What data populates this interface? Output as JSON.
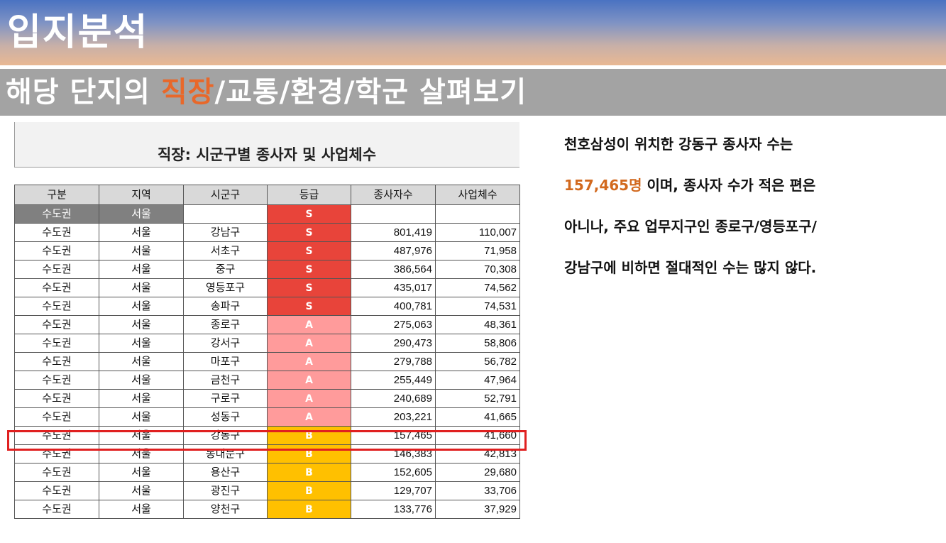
{
  "header": {
    "title": "입지분석",
    "subtitle_pre": "해당 단지의 ",
    "subtitle_highlight": "직장",
    "subtitle_post": "/교통/환경/학군 살펴보기"
  },
  "table": {
    "title": "직장: 시군구별 종사자 및 사업체수",
    "columns": [
      "구분",
      "지역",
      "시군구",
      "등급",
      "종사자수",
      "사업체수"
    ],
    "summary_row": {
      "category": "수도권",
      "region": "서울",
      "district": "",
      "grade": "S",
      "workers": "",
      "businesses": ""
    },
    "rows": [
      {
        "category": "수도권",
        "region": "서울",
        "district": "강남구",
        "grade": "S",
        "workers": "801,419",
        "businesses": "110,007"
      },
      {
        "category": "수도권",
        "region": "서울",
        "district": "서초구",
        "grade": "S",
        "workers": "487,976",
        "businesses": "71,958"
      },
      {
        "category": "수도권",
        "region": "서울",
        "district": "중구",
        "grade": "S",
        "workers": "386,564",
        "businesses": "70,308"
      },
      {
        "category": "수도권",
        "region": "서울",
        "district": "영등포구",
        "grade": "S",
        "workers": "435,017",
        "businesses": "74,562"
      },
      {
        "category": "수도권",
        "region": "서울",
        "district": "송파구",
        "grade": "S",
        "workers": "400,781",
        "businesses": "74,531"
      },
      {
        "category": "수도권",
        "region": "서울",
        "district": "종로구",
        "grade": "A",
        "workers": "275,063",
        "businesses": "48,361"
      },
      {
        "category": "수도권",
        "region": "서울",
        "district": "강서구",
        "grade": "A",
        "workers": "290,473",
        "businesses": "58,806"
      },
      {
        "category": "수도권",
        "region": "서울",
        "district": "마포구",
        "grade": "A",
        "workers": "279,788",
        "businesses": "56,782"
      },
      {
        "category": "수도권",
        "region": "서울",
        "district": "금천구",
        "grade": "A",
        "workers": "255,449",
        "businesses": "47,964"
      },
      {
        "category": "수도권",
        "region": "서울",
        "district": "구로구",
        "grade": "A",
        "workers": "240,689",
        "businesses": "52,791"
      },
      {
        "category": "수도권",
        "region": "서울",
        "district": "성동구",
        "grade": "A",
        "workers": "203,221",
        "businesses": "41,665"
      },
      {
        "category": "수도권",
        "region": "서울",
        "district": "강동구",
        "grade": "B",
        "workers": "157,465",
        "businesses": "41,660"
      },
      {
        "category": "수도권",
        "region": "서울",
        "district": "동대문구",
        "grade": "B",
        "workers": "146,383",
        "businesses": "42,813"
      },
      {
        "category": "수도권",
        "region": "서울",
        "district": "용산구",
        "grade": "B",
        "workers": "152,605",
        "businesses": "29,680"
      },
      {
        "category": "수도권",
        "region": "서울",
        "district": "광진구",
        "grade": "B",
        "workers": "129,707",
        "businesses": "33,706"
      },
      {
        "category": "수도권",
        "region": "서울",
        "district": "양천구",
        "grade": "B",
        "workers": "133,776",
        "businesses": "37,929"
      }
    ],
    "grade_colors": {
      "S": "#e8443a",
      "A": "#ff9b9b",
      "B": "#ffc000"
    },
    "highlight_district": "강동구"
  },
  "description": {
    "line1": "천호삼성이 위치한 강동구 종사자 수는",
    "line2_number": "157,465명",
    "line2_rest": " 이며, 종사자 수가 적은 편은",
    "line3": "아니나, 주요 업무지구인 종로구/영등포구/",
    "line4": "강남구에 비하면 절대적인 수는 많지 않다."
  }
}
